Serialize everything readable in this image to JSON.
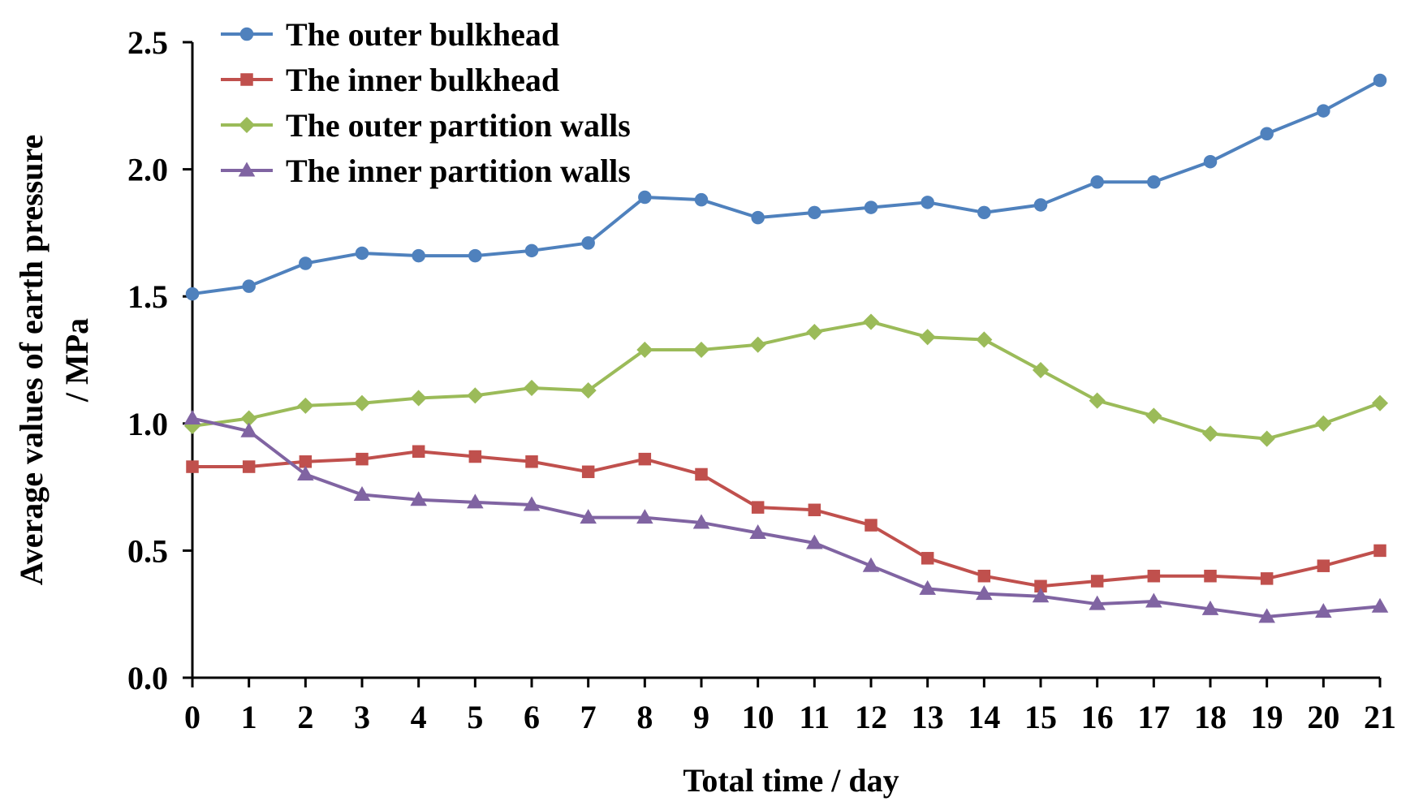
{
  "chart_data": {
    "type": "line",
    "title": "",
    "xlabel": "Total time / day",
    "ylabel_line1": "Average values of earth pressure",
    "ylabel_line2": "/ MPa",
    "xlim": [
      0,
      21
    ],
    "ylim": [
      0,
      2.5
    ],
    "x": [
      0,
      1,
      2,
      3,
      4,
      5,
      6,
      7,
      8,
      9,
      10,
      11,
      12,
      13,
      14,
      15,
      16,
      17,
      18,
      19,
      20,
      21
    ],
    "x_tick_labels": [
      "0",
      "1",
      "2",
      "3",
      "4",
      "5",
      "6",
      "7",
      "8",
      "9",
      "10",
      "11",
      "12",
      "13",
      "14",
      "15",
      "16",
      "17",
      "18",
      "19",
      "20",
      "21"
    ],
    "y_ticks": [
      0,
      0.5,
      1.0,
      1.5,
      2.0,
      2.5
    ],
    "y_tick_labels": [
      "0.0",
      "0.5",
      "1.0",
      "1.5",
      "2.0",
      "2.5"
    ],
    "grid": false,
    "legend_position": "top-left",
    "series": [
      {
        "name": "The outer bulkhead",
        "color": "#4f81bd",
        "marker": "circle",
        "values": [
          1.51,
          1.54,
          1.63,
          1.67,
          1.66,
          1.66,
          1.68,
          1.71,
          1.89,
          1.88,
          1.81,
          1.83,
          1.85,
          1.87,
          1.83,
          1.86,
          1.95,
          1.95,
          2.03,
          2.14,
          2.23,
          2.35
        ]
      },
      {
        "name": "The inner bulkhead",
        "color": "#c0504d",
        "marker": "square",
        "values": [
          0.83,
          0.83,
          0.85,
          0.86,
          0.89,
          0.87,
          0.85,
          0.81,
          0.86,
          0.8,
          0.67,
          0.66,
          0.6,
          0.47,
          0.4,
          0.36,
          0.38,
          0.4,
          0.4,
          0.39,
          0.44,
          0.5
        ]
      },
      {
        "name": "The outer partition walls",
        "color": "#9bbb59",
        "marker": "diamond",
        "values": [
          0.99,
          1.02,
          1.07,
          1.08,
          1.1,
          1.11,
          1.14,
          1.13,
          1.29,
          1.29,
          1.31,
          1.36,
          1.4,
          1.34,
          1.33,
          1.21,
          1.09,
          1.03,
          0.96,
          0.94,
          1.0,
          1.08
        ]
      },
      {
        "name": "The inner partition walls",
        "color": "#8064a2",
        "marker": "triangle",
        "values": [
          1.02,
          0.97,
          0.8,
          0.72,
          0.7,
          0.69,
          0.68,
          0.63,
          0.63,
          0.61,
          0.57,
          0.53,
          0.44,
          0.35,
          0.33,
          0.32,
          0.29,
          0.3,
          0.27,
          0.24,
          0.26,
          0.28
        ]
      }
    ]
  }
}
